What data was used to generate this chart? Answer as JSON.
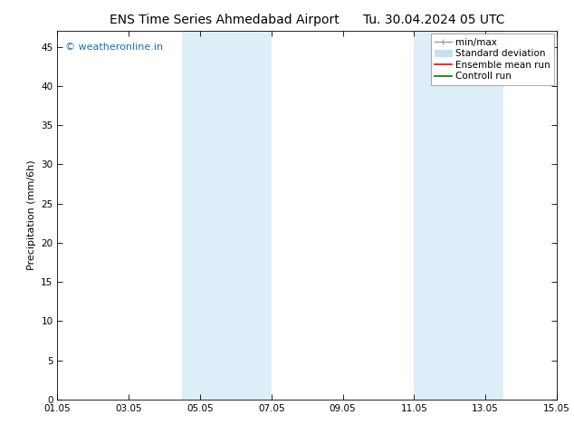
{
  "title": "ENS Time Series Ahmedabad Airport      Tu. 30.04.2024 05 UTC",
  "ylabel": "Precipitation (mm/6h)",
  "xlabel": "",
  "ylim": [
    0,
    47
  ],
  "yticks": [
    0,
    5,
    10,
    15,
    20,
    25,
    30,
    35,
    40,
    45
  ],
  "xticks": [
    "01.05",
    "03.05",
    "05.05",
    "07.05",
    "09.05",
    "11.05",
    "13.05",
    "15.05"
  ],
  "xtick_positions": [
    0,
    2,
    4,
    6,
    8,
    10,
    12,
    14
  ],
  "xlim": [
    0,
    14
  ],
  "shaded_regions": [
    {
      "xmin": 3.5,
      "xmax": 4.5,
      "color": "#ddeef8"
    },
    {
      "xmin": 4.5,
      "xmax": 6.0,
      "color": "#ddeef8"
    },
    {
      "xmin": 10.0,
      "xmax": 11.0,
      "color": "#ddeef8"
    },
    {
      "xmin": 11.0,
      "xmax": 12.5,
      "color": "#ddeef8"
    }
  ],
  "watermark_text": "© weatheronline.in",
  "watermark_color": "#1e6cb5",
  "background_color": "#ffffff",
  "plot_bg_color": "#ffffff",
  "legend_entries": [
    {
      "label": "min/max",
      "color": "#999999",
      "lw": 1.0
    },
    {
      "label": "Standard deviation",
      "color": "#c8dff0",
      "lw": 5
    },
    {
      "label": "Ensemble mean run",
      "color": "#ff0000",
      "lw": 1.2
    },
    {
      "label": "Controll run",
      "color": "#007700",
      "lw": 1.2
    }
  ],
  "font_size_title": 10,
  "font_size_axis": 8,
  "font_size_ticks": 7.5,
  "font_size_legend": 7.5,
  "font_size_watermark": 8
}
